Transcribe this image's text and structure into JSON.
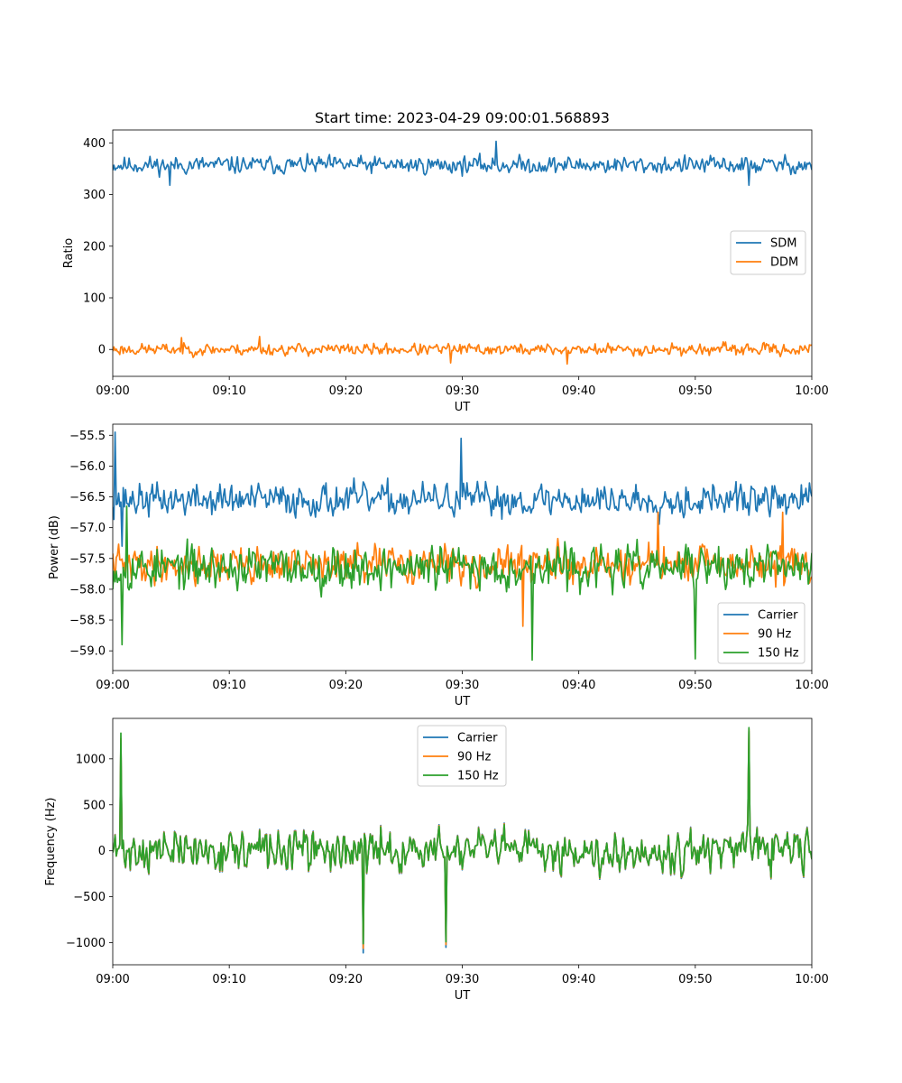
{
  "chart_data": [
    {
      "type": "line",
      "title": "Start time: 2023-04-29 09:00:01.568893",
      "xlabel": "UT",
      "ylabel": "Ratio",
      "x_ticks": [
        "09:00",
        "09:10",
        "09:20",
        "09:30",
        "09:40",
        "09:50",
        "10:00"
      ],
      "x_range_minutes": [
        0,
        60
      ],
      "ylim": [
        -52,
        425
      ],
      "y_ticks": [
        0,
        100,
        200,
        300,
        400
      ],
      "y_tick_labels": [
        "0",
        "100",
        "200",
        "300",
        "400"
      ],
      "legend_position": "center-right",
      "series": [
        {
          "name": "SDM",
          "color": "#1f77b4",
          "mean": 357,
          "amplitude": 24,
          "seed": 11,
          "peaks": [
            [
              32.9,
              403
            ],
            [
              4.9,
              318
            ],
            [
              54.6,
              318
            ]
          ]
        },
        {
          "name": "DDM",
          "color": "#ff7f0e",
          "mean": 0,
          "amplitude": 16,
          "seed": 23,
          "peaks": [
            [
              12.6,
              25
            ],
            [
              5.9,
              23
            ],
            [
              29.0,
              -26
            ],
            [
              39.0,
              -28
            ]
          ]
        }
      ]
    },
    {
      "type": "line",
      "title": "",
      "xlabel": "UT",
      "ylabel": "Power (dB)",
      "x_ticks": [
        "09:00",
        "09:10",
        "09:20",
        "09:30",
        "09:40",
        "09:50",
        "10:00"
      ],
      "x_range_minutes": [
        0,
        60
      ],
      "ylim": [
        -59.32,
        -55.32
      ],
      "y_ticks": [
        -59.0,
        -58.5,
        -58.0,
        -57.5,
        -57.0,
        -56.5,
        -56.0,
        -55.5
      ],
      "y_tick_labels": [
        "−59.0",
        "−58.5",
        "−58.0",
        "−57.5",
        "−57.0",
        "−56.5",
        "−56.0",
        "−55.5"
      ],
      "legend_position": "lower-right",
      "series": [
        {
          "name": "Carrier",
          "color": "#1f77b4",
          "mean": -56.55,
          "amplitude": 0.38,
          "seed": 37,
          "peaks": [
            [
              0.2,
              -55.45
            ],
            [
              29.9,
              -55.55
            ],
            [
              0.8,
              -57.3
            ]
          ]
        },
        {
          "name": "90 Hz",
          "color": "#ff7f0e",
          "mean": -57.6,
          "amplitude": 0.42,
          "seed": 41,
          "peaks": [
            [
              35.2,
              -58.6
            ],
            [
              46.8,
              -56.75
            ],
            [
              57.5,
              -56.75
            ]
          ]
        },
        {
          "name": "150 Hz",
          "color": "#2ca02c",
          "mean": -57.65,
          "amplitude": 0.5,
          "seed": 53,
          "peaks": [
            [
              36.0,
              -59.15
            ],
            [
              50.0,
              -59.13
            ],
            [
              0.8,
              -58.9
            ],
            [
              1.2,
              -56.65
            ]
          ]
        }
      ]
    },
    {
      "type": "line",
      "title": "",
      "xlabel": "UT",
      "ylabel": "Frequency (Hz)",
      "x_ticks": [
        "09:00",
        "09:10",
        "09:20",
        "09:30",
        "09:40",
        "09:50",
        "10:00"
      ],
      "x_range_minutes": [
        0,
        60
      ],
      "ylim": [
        -1240,
        1440
      ],
      "y_ticks": [
        -1000,
        -500,
        0,
        500,
        1000
      ],
      "y_tick_labels": [
        "−1000",
        "−500",
        "0",
        "500",
        "1000"
      ],
      "legend_position": "upper-center",
      "series": [
        {
          "name": "Carrier",
          "color": "#1f77b4",
          "mean": 0,
          "amplitude": 330,
          "seed": 71,
          "peaks": [
            [
              21.5,
              -1110
            ],
            [
              28.6,
              -1050
            ],
            [
              0.7,
              1200
            ],
            [
              54.6,
              1300
            ]
          ]
        },
        {
          "name": "90 Hz",
          "color": "#ff7f0e",
          "mean": 0,
          "amplitude": 320,
          "seed": 71,
          "peaks": [
            [
              21.5,
              -1060
            ],
            [
              28.6,
              -1020
            ],
            [
              0.7,
              1220
            ],
            [
              54.6,
              1320
            ]
          ]
        },
        {
          "name": "150 Hz",
          "color": "#2ca02c",
          "mean": 0,
          "amplitude": 310,
          "seed": 71,
          "peaks": [
            [
              21.5,
              -1010
            ],
            [
              28.6,
              -990
            ],
            [
              0.7,
              1280
            ],
            [
              54.6,
              1340
            ]
          ]
        }
      ]
    }
  ]
}
